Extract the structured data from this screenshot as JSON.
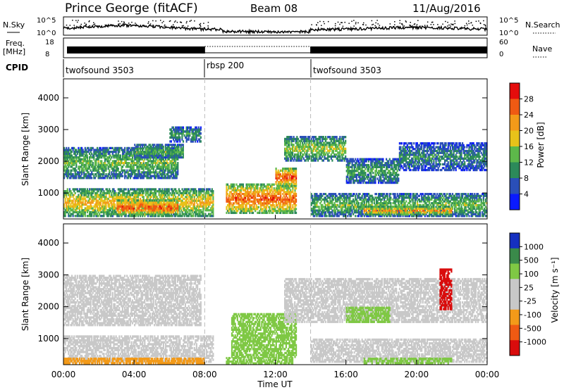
{
  "header": {
    "station": "Prince George (fitACF)",
    "beam": "Beam 08",
    "date": "11/Aug/2016"
  },
  "noise_panel": {
    "left_label": "N.Sky",
    "right_label": "N.Search",
    "ticks_left": [
      "10^5",
      "10^0"
    ],
    "ticks_right": [
      "10^5",
      "10^0"
    ]
  },
  "freq_panel": {
    "left_label_1": "Freq.",
    "left_label_2": "[MHz]",
    "right_label": "Nave",
    "ticks_left": [
      "18",
      "8"
    ],
    "ticks_right": [
      "60",
      "0"
    ]
  },
  "cpid": {
    "label": "CPID",
    "segments": [
      "twofsound 3503",
      "rbsp 200",
      "twofsound 3503"
    ]
  },
  "power_panel": {
    "ylabel": "Slant Range [km]",
    "cbar_label": "Power [dB]",
    "cbar_ticks": [
      "28",
      "24",
      "20",
      "16",
      "12",
      "8",
      "4"
    ]
  },
  "velocity_panel": {
    "ylabel": "Slant Range [km]",
    "cbar_label": "Velocity [m s⁻¹]",
    "cbar_ticks": [
      "1000",
      "500",
      "100",
      "25",
      "-25",
      "-100",
      "-500",
      "-1000"
    ]
  },
  "xaxis": {
    "label": "Time UT",
    "ticks": [
      "00:00",
      "04:00",
      "08:00",
      "12:00",
      "16:00",
      "20:00",
      "00:00"
    ]
  },
  "colors": {
    "power_scale": [
      "#0a1aff",
      "#2a4fb8",
      "#2c8a5a",
      "#5db84a",
      "#e8c21a",
      "#f39a19",
      "#ef5a13",
      "#e40c0c"
    ],
    "velocity_scale": [
      "#d90c0c",
      "#ef5a13",
      "#f39a19",
      "#c8c8c8",
      "#c8c8c8",
      "#7fc844",
      "#3a8a4a",
      "#1530c0"
    ]
  },
  "chart_data": [
    {
      "type": "heatmap",
      "title": "Power",
      "ylabel": "Slant Range [km]",
      "xlabel": "Time UT",
      "ylim": [
        180,
        4600
      ],
      "xlim_hours": [
        0,
        24
      ],
      "yticks": [
        1000,
        2000,
        3000,
        4000
      ],
      "grid": false,
      "backscatter_bands": [
        {
          "t_start": 0.0,
          "t_end": 6.5,
          "range_low": 1450,
          "range_high": 2450,
          "power_db": 14
        },
        {
          "t_start": 4.0,
          "t_end": 6.8,
          "range_low": 2100,
          "range_high": 2550,
          "power_db": 14
        },
        {
          "t_start": 6.0,
          "t_end": 7.8,
          "range_low": 2600,
          "range_high": 3100,
          "power_db": 12
        },
        {
          "t_start": 0.0,
          "t_end": 8.5,
          "range_low": 250,
          "range_high": 1150,
          "power_db": 20
        },
        {
          "t_start": 3.0,
          "t_end": 6.5,
          "range_low": 300,
          "range_high": 800,
          "power_db": 28
        },
        {
          "t_start": 9.2,
          "t_end": 13.2,
          "range_low": 350,
          "range_high": 1300,
          "power_db": 26
        },
        {
          "t_start": 12.0,
          "t_end": 13.2,
          "range_low": 1200,
          "range_high": 1800,
          "power_db": 28
        },
        {
          "t_start": 12.5,
          "t_end": 16.0,
          "range_low": 2000,
          "range_high": 2800,
          "power_db": 16
        },
        {
          "t_start": 16.0,
          "t_end": 19.0,
          "range_low": 1300,
          "range_high": 2100,
          "power_db": 12
        },
        {
          "t_start": 19.0,
          "t_end": 24.0,
          "range_low": 1700,
          "range_high": 2600,
          "power_db": 10
        },
        {
          "t_start": 14.0,
          "t_end": 24.0,
          "range_low": 250,
          "range_high": 1000,
          "power_db": 14
        },
        {
          "t_start": 17.0,
          "t_end": 22.0,
          "range_low": 300,
          "range_high": 600,
          "power_db": 24
        }
      ]
    },
    {
      "type": "heatmap",
      "title": "Velocity",
      "ylabel": "Slant Range [km]",
      "xlabel": "Time UT",
      "ylim": [
        180,
        4600
      ],
      "xlim_hours": [
        0,
        24
      ],
      "yticks": [
        1000,
        2000,
        3000,
        4000
      ],
      "grid": false,
      "backscatter_bands": [
        {
          "t_start": 0.0,
          "t_end": 7.8,
          "range_low": 1400,
          "range_high": 3000,
          "velocity": 0
        },
        {
          "t_start": 0.0,
          "t_end": 8.5,
          "range_low": 250,
          "range_high": 1100,
          "velocity": 0
        },
        {
          "t_start": 0.0,
          "t_end": 8.0,
          "range_low": 200,
          "range_high": 400,
          "velocity": -80
        },
        {
          "t_start": 9.5,
          "t_end": 13.2,
          "range_low": 400,
          "range_high": 1800,
          "velocity": 100
        },
        {
          "t_start": 9.2,
          "t_end": 13.0,
          "range_low": 200,
          "range_high": 420,
          "velocity": 60
        },
        {
          "t_start": 12.5,
          "t_end": 24.0,
          "range_low": 1500,
          "range_high": 2900,
          "velocity": 0
        },
        {
          "t_start": 16.0,
          "t_end": 18.5,
          "range_low": 1500,
          "range_high": 2000,
          "velocity": 100
        },
        {
          "t_start": 21.3,
          "t_end": 22.0,
          "range_low": 1900,
          "range_high": 3200,
          "velocity": -1000
        },
        {
          "t_start": 14.0,
          "t_end": 24.0,
          "range_low": 250,
          "range_high": 1000,
          "velocity": 0
        },
        {
          "t_start": 17.0,
          "t_end": 22.0,
          "range_low": 200,
          "range_high": 400,
          "velocity": 60
        }
      ]
    }
  ]
}
